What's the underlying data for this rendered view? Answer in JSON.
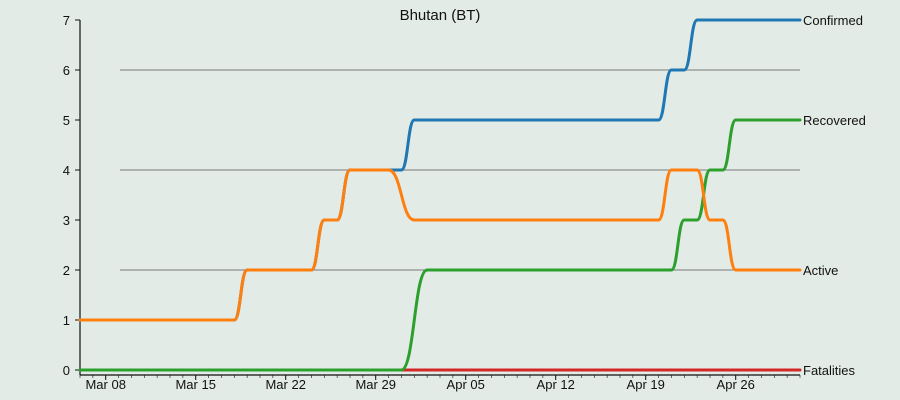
{
  "chart_data": {
    "type": "line",
    "title": "Bhutan (BT)",
    "xlabel": "",
    "ylabel": "",
    "x_start": "Mar 06",
    "x_end": "May 01",
    "ylim": [
      0,
      7
    ],
    "y_ticks": [
      0,
      1,
      2,
      3,
      4,
      5,
      6,
      7
    ],
    "x_ticks": [
      "Mar 08",
      "Mar 15",
      "Mar 22",
      "Mar 29",
      "Apr 05",
      "Apr 12",
      "Apr 19",
      "Apr 26"
    ],
    "gridlines_y": [
      2,
      4,
      6
    ],
    "grid": true,
    "legend_placement": "right-edge labels",
    "series": [
      {
        "name": "Confirmed",
        "color": "#1f77b4",
        "points": [
          [
            "Mar 06",
            1
          ],
          [
            "Mar 18",
            1
          ],
          [
            "Mar 19",
            2
          ],
          [
            "Mar 24",
            2
          ],
          [
            "Mar 25",
            3
          ],
          [
            "Mar 26",
            3
          ],
          [
            "Mar 27",
            4
          ],
          [
            "Mar 31",
            4
          ],
          [
            "Apr 01",
            5
          ],
          [
            "Apr 20",
            5
          ],
          [
            "Apr 21",
            6
          ],
          [
            "Apr 22",
            6
          ],
          [
            "Apr 23",
            7
          ],
          [
            "May 01",
            7
          ]
        ]
      },
      {
        "name": "Recovered",
        "color": "#2ca02c",
        "points": [
          [
            "Mar 06",
            0
          ],
          [
            "Mar 31",
            0
          ],
          [
            "Apr 02",
            2
          ],
          [
            "Apr 21",
            2
          ],
          [
            "Apr 22",
            3
          ],
          [
            "Apr 23",
            3
          ],
          [
            "Apr 24",
            4
          ],
          [
            "Apr 25",
            4
          ],
          [
            "Apr 26",
            5
          ],
          [
            "May 01",
            5
          ]
        ]
      },
      {
        "name": "Active",
        "color": "#ff7f0e",
        "points": [
          [
            "Mar 06",
            1
          ],
          [
            "Mar 18",
            1
          ],
          [
            "Mar 19",
            2
          ],
          [
            "Mar 24",
            2
          ],
          [
            "Mar 25",
            3
          ],
          [
            "Mar 26",
            3
          ],
          [
            "Mar 27",
            4
          ],
          [
            "Mar 30",
            4
          ],
          [
            "Apr 01",
            3
          ],
          [
            "Apr 20",
            3
          ],
          [
            "Apr 21",
            4
          ],
          [
            "Apr 23",
            4
          ],
          [
            "Apr 24",
            3
          ],
          [
            "Apr 25",
            3
          ],
          [
            "Apr 26",
            2
          ],
          [
            "May 01",
            2
          ]
        ]
      },
      {
        "name": "Fatalities",
        "color": "#d62728",
        "points": [
          [
            "Mar 06",
            0
          ],
          [
            "May 01",
            0
          ]
        ]
      }
    ]
  }
}
